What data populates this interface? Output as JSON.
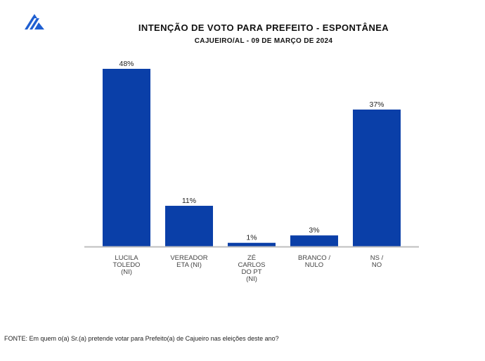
{
  "header": {
    "title": "INTENÇÃO DE VOTO PARA PREFEITO - ESPONTÂNEA",
    "subtitle": "CAJUEIRO/AL - 09 DE MARÇO DE 2024"
  },
  "logo": {
    "icon": "brand-logo-icon",
    "color": "#1f5fd1"
  },
  "colors": {
    "bar": "#0a3fa8",
    "axis": "#bfbfbf"
  },
  "chart_data": {
    "type": "bar",
    "title": "INTENÇÃO DE VOTO PARA PREFEITO - ESPONTÂNEA",
    "subtitle": "CAJUEIRO/AL - 09 DE MARÇO DE 2024",
    "categories": [
      [
        "LUCILA",
        "TOLEDO",
        "(NI)"
      ],
      [
        "VEREADOR",
        "ETA (NI)"
      ],
      [
        "ZÉ",
        "CARLOS",
        "DO PT",
        "(NI)"
      ],
      [
        "BRANCO /",
        "NULO"
      ],
      [
        "NS /",
        "NO"
      ]
    ],
    "values": [
      48,
      11,
      1,
      3,
      37
    ],
    "value_labels": [
      "48%",
      "11%",
      "1%",
      "3%",
      "37%"
    ],
    "unit": "%",
    "ylim": [
      0,
      48
    ],
    "xlabel": "",
    "ylabel": "",
    "grid": false
  },
  "footer": {
    "source": "FONTE: Em quem o(a) Sr.(a) pretende votar para Prefeito(a) de Cajueiro nas eleições deste ano?"
  }
}
